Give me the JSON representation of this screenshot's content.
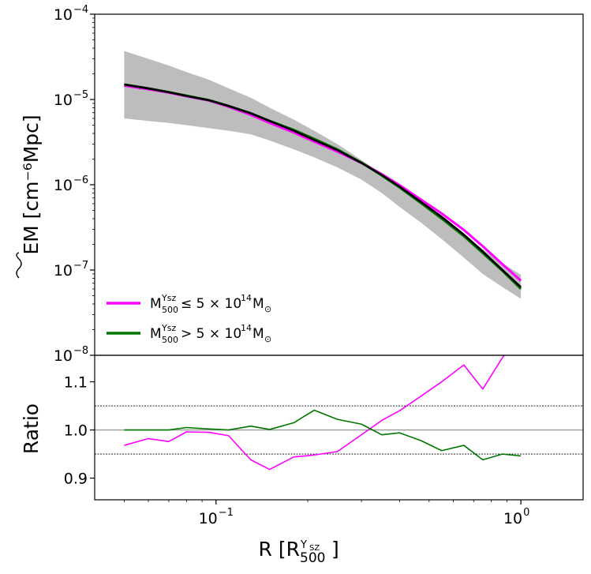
{
  "chart_data": [
    {
      "panel": "top",
      "type": "line",
      "xscale": "log",
      "yscale": "log",
      "xlim": [
        0.04,
        1.6
      ],
      "ylim": [
        1e-08,
        0.0001
      ],
      "ylabel": "EM [cm⁻⁶Mpc]",
      "yticks": [
        {
          "value": 1e-08,
          "base": "10",
          "exp": "−8"
        },
        {
          "value": 1e-07,
          "base": "10",
          "exp": "−7"
        },
        {
          "value": 1e-06,
          "base": "10",
          "exp": "−6"
        },
        {
          "value": 1e-05,
          "base": "10",
          "exp": "−5"
        },
        {
          "value": 0.0001,
          "base": "10",
          "exp": "−4"
        }
      ],
      "x": [
        0.05,
        0.06,
        0.07,
        0.08,
        0.095,
        0.11,
        0.13,
        0.15,
        0.18,
        0.21,
        0.25,
        0.3,
        0.35,
        0.4,
        0.47,
        0.55,
        0.65,
        0.75,
        0.87,
        1.0
      ],
      "band": {
        "color": "#bdbdbd",
        "lower": [
          6e-06,
          5.6e-06,
          5.3e-06,
          5e-06,
          4.6e-06,
          4.3e-06,
          3.9e-06,
          3.3e-06,
          2.6e-06,
          2.1e-06,
          1.6e-06,
          1.15e-06,
          8e-07,
          5.5e-07,
          3.6e-07,
          2.3e-07,
          1.4e-07,
          9e-08,
          6.3e-08,
          4.6e-08
        ],
        "upper": [
          3.7e-05,
          3e-05,
          2.5e-05,
          2.1e-05,
          1.7e-05,
          1.35e-05,
          1.05e-05,
          8e-06,
          5.8e-06,
          4.3e-06,
          3e-06,
          1.95e-06,
          1.35e-06,
          9.5e-07,
          6.2e-07,
          4.1e-07,
          2.6e-07,
          1.75e-07,
          1.2e-07,
          8.8e-08
        ]
      },
      "series": [
        {
          "key": "all",
          "color": "#000000",
          "values": [
            1.5e-05,
            1.35e-05,
            1.22e-05,
            1.1e-05,
            9.8e-06,
            8.4e-06,
            6.9e-06,
            5.6e-06,
            4.3e-06,
            3.35e-06,
            2.55e-06,
            1.8e-06,
            1.3e-06,
            9.5e-07,
            6.3e-07,
            4.2e-07,
            2.6e-07,
            1.65e-07,
            1e-07,
            6.3e-08
          ]
        },
        {
          "key": "low",
          "name": "M₅₀₀^{Y_SZ} ≤ 5 × 10¹⁴M⊙",
          "color": "#ff00ff",
          "values": [
            1.45e-05,
            1.32e-05,
            1.2e-05,
            1.09e-05,
            9.7e-06,
            8.2e-06,
            6.6e-06,
            5.3e-06,
            4.1e-06,
            3.2e-06,
            2.45e-06,
            1.8e-06,
            1.33e-06,
            9.9e-07,
            6.7e-07,
            4.6e-07,
            2.95e-07,
            1.9e-07,
            1.17e-07,
            7.5e-08
          ]
        },
        {
          "key": "high",
          "name": "M₅₀₀^{Y_SZ} > 5 × 10¹⁴M⊙",
          "color": "#007700",
          "values": [
            1.5e-05,
            1.35e-05,
            1.22e-05,
            1.11e-05,
            9.8e-06,
            8.4e-06,
            6.9e-06,
            5.6e-06,
            4.4e-06,
            3.45e-06,
            2.6e-06,
            1.82e-06,
            1.28e-06,
            9.3e-07,
            6.1e-07,
            4e-07,
            2.5e-07,
            1.58e-07,
            9.8e-08,
            6e-08
          ]
        }
      ],
      "legend": [
        {
          "key": "low",
          "label": "M",
          "sub": "500",
          "sup": "Ysz",
          "rest": " ≤ 5 × 10",
          "exp": "14",
          "tail": "M",
          "sub2": "⊙",
          "color": "#ff00ff"
        },
        {
          "key": "high",
          "label": "M",
          "sub": "500",
          "sup": "Ysz",
          "rest": " > 5 × 10",
          "exp": "14",
          "tail": "M",
          "sub2": "⊙",
          "color": "#007700"
        }
      ],
      "legend_position": "bottom-left"
    },
    {
      "panel": "bottom",
      "type": "line",
      "xscale": "log",
      "yscale": "linear",
      "xlim": [
        0.04,
        1.6
      ],
      "ylim": [
        0.855,
        1.155
      ],
      "ylabel": "Ratio",
      "xlabel": "R [R",
      "xlabel_sub": "500",
      "xlabel_sup": "Y",
      "xlabel_supsub": "SZ",
      "xlabel_close": "]",
      "yticks": [
        "0.9",
        "1.0",
        "1.1"
      ],
      "ytick_values": [
        0.9,
        1.0,
        1.1
      ],
      "xticks": [
        {
          "value": 0.1,
          "base": "10",
          "exp": "−1"
        },
        {
          "value": 1.0,
          "base": "10",
          "exp": "0"
        }
      ],
      "reference_lines": [
        {
          "value": 1.0,
          "style": "solid",
          "color": "#999999"
        },
        {
          "value": 1.05,
          "style": "dotted",
          "color": "#000000"
        },
        {
          "value": 0.95,
          "style": "dotted",
          "color": "#000000"
        }
      ],
      "x": [
        0.05,
        0.06,
        0.07,
        0.08,
        0.095,
        0.11,
        0.13,
        0.15,
        0.18,
        0.21,
        0.25,
        0.3,
        0.35,
        0.4,
        0.47,
        0.55,
        0.65,
        0.75,
        0.87,
        1.0
      ],
      "series": [
        {
          "key": "low",
          "color": "#ff00ff",
          "values": [
            0.968,
            0.982,
            0.976,
            0.996,
            0.995,
            0.988,
            0.938,
            0.918,
            0.944,
            0.948,
            0.955,
            0.99,
            1.02,
            1.04,
            1.07,
            1.1,
            1.135,
            1.085,
            1.15,
            1.2
          ]
        },
        {
          "key": "high",
          "color": "#007700",
          "values": [
            1.0,
            1.0,
            1.0,
            1.005,
            1.002,
            1.0,
            1.008,
            1.001,
            1.015,
            1.041,
            1.022,
            1.012,
            0.99,
            0.994,
            0.978,
            0.957,
            0.968,
            0.938,
            0.95,
            0.946
          ]
        }
      ]
    }
  ]
}
